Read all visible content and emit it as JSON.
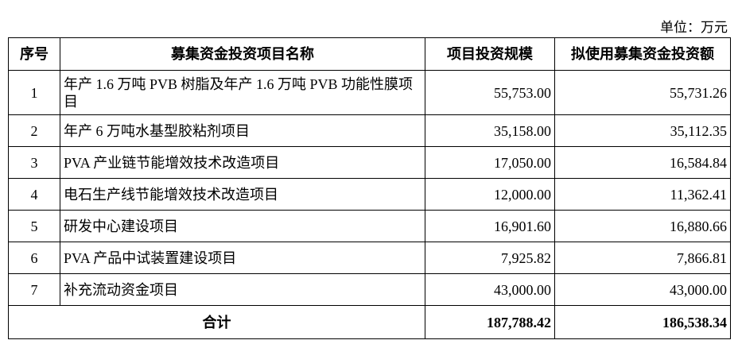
{
  "unit_label": "单位：万元",
  "headers": [
    "序号",
    "募集资金投资项目名称",
    "项目投资规模",
    "拟使用募集资金投资额"
  ],
  "rows": [
    {
      "no": "1",
      "name": "年产 1.6 万吨 PVB 树脂及年产 1.6 万吨 PVB 功能性膜项目",
      "scale": "55,753.00",
      "amount": "55,731.26"
    },
    {
      "no": "2",
      "name": "年产 6 万吨水基型胶粘剂项目",
      "scale": "35,158.00",
      "amount": "35,112.35"
    },
    {
      "no": "3",
      "name": "PVA 产业链节能增效技术改造项目",
      "scale": "17,050.00",
      "amount": "16,584.84"
    },
    {
      "no": "4",
      "name": "电石生产线节能增效技术改造项目",
      "scale": "12,000.00",
      "amount": "11,362.41"
    },
    {
      "no": "5",
      "name": "研发中心建设项目",
      "scale": "16,901.60",
      "amount": "16,880.66"
    },
    {
      "no": "6",
      "name": "PVA 产品中试装置建设项目",
      "scale": "7,925.82",
      "amount": "7,866.81"
    },
    {
      "no": "7",
      "name": "补充流动资金项目",
      "scale": "43,000.00",
      "amount": "43,000.00"
    }
  ],
  "total": {
    "label": "合计",
    "scale": "187,788.42",
    "amount": "186,538.34"
  }
}
